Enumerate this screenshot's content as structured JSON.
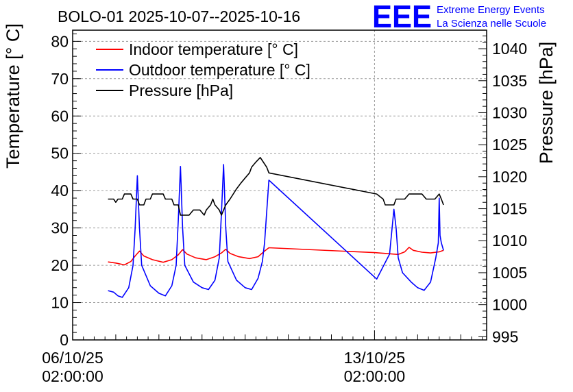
{
  "chart_data": {
    "type": "line",
    "title": "BOLO-01 2025-10-07--2025-10-16",
    "ylabel": "Temperature [° C]",
    "y2label": "Pressure [hPa]",
    "ylim": [
      0,
      83
    ],
    "y2lim": [
      994.5,
      1042.9
    ],
    "xlim": [
      0,
      9.6
    ],
    "x_unit": "days since 06/10/25 02:00:00",
    "yticks": [
      0,
      10,
      20,
      30,
      40,
      50,
      60,
      70,
      80
    ],
    "y2ticks": [
      995,
      1000,
      1005,
      1010,
      1015,
      1020,
      1025,
      1030,
      1035,
      1040
    ],
    "xticks": [
      {
        "x": 0,
        "line1": "06/10/25",
        "line2": "02:00:00"
      },
      {
        "x": 7,
        "line1": "13/10/25",
        "line2": "02:00:00"
      }
    ],
    "grid": true,
    "legend_position": "top-left",
    "logo": {
      "mark": "EEE",
      "line1": "Extreme Energy Events",
      "line2": "La Scienza nelle Scuole"
    },
    "series": [
      {
        "name": "Indoor temperature [° C]",
        "color": "#ff0000",
        "axis": "left",
        "x": [
          0.82,
          1.0,
          1.2,
          1.35,
          1.45,
          1.55,
          1.65,
          1.85,
          2.1,
          2.3,
          2.45,
          2.55,
          2.65,
          2.85,
          3.1,
          3.3,
          3.45,
          3.55,
          3.65,
          3.85,
          4.1,
          4.3,
          4.45,
          4.55,
          7.0,
          7.55,
          7.7,
          7.8,
          7.9,
          8.1,
          8.3,
          8.5,
          8.6
        ],
        "y": [
          20.9,
          20.6,
          20.1,
          21.0,
          22.5,
          23.8,
          22.5,
          21.5,
          20.8,
          21.5,
          22.8,
          24.2,
          23.0,
          22.0,
          21.5,
          22.3,
          23.3,
          24.3,
          23.2,
          22.3,
          21.8,
          22.3,
          23.8,
          24.7,
          23.4,
          22.9,
          23.6,
          24.8,
          24.0,
          23.5,
          23.3,
          23.6,
          24.0
        ]
      },
      {
        "name": "Outdoor temperature [° C]",
        "color": "#0000ff",
        "axis": "left",
        "x": [
          0.82,
          0.95,
          1.05,
          1.15,
          1.3,
          1.4,
          1.45,
          1.5,
          1.55,
          1.6,
          1.8,
          2.0,
          2.15,
          2.3,
          2.4,
          2.45,
          2.5,
          2.55,
          2.6,
          2.8,
          3.0,
          3.15,
          3.3,
          3.4,
          3.45,
          3.5,
          3.55,
          3.6,
          3.8,
          4.0,
          4.15,
          4.3,
          4.4,
          4.45,
          4.55,
          7.05,
          7.35,
          7.45,
          7.5,
          7.55,
          7.65,
          7.85,
          8.0,
          8.15,
          8.3,
          8.42,
          8.48,
          8.5,
          8.52,
          8.55,
          8.6
        ],
        "y": [
          13.2,
          12.8,
          11.8,
          11.4,
          14.0,
          20.0,
          30.0,
          44.0,
          30.0,
          20.0,
          14.5,
          12.5,
          11.8,
          14.5,
          20.0,
          32.0,
          46.5,
          30.0,
          20.0,
          15.5,
          14.0,
          13.5,
          16.0,
          22.0,
          34.0,
          47.0,
          30.0,
          21.0,
          16.0,
          14.0,
          13.5,
          16.5,
          21.0,
          26.0,
          42.8,
          16.3,
          23.0,
          35.0,
          30.0,
          22.0,
          18.0,
          15.5,
          14.0,
          13.3,
          15.5,
          22.0,
          26.0,
          38.0,
          28.0,
          26.0,
          24.0
        ]
      },
      {
        "name": "Pressure [hPa]",
        "color": "#000000",
        "axis": "right",
        "x": [
          0.82,
          0.95,
          1.0,
          1.05,
          1.15,
          1.2,
          1.35,
          1.4,
          1.5,
          1.55,
          1.65,
          1.7,
          1.8,
          1.85,
          2.1,
          2.15,
          2.3,
          2.35,
          2.45,
          2.5,
          2.7,
          2.8,
          2.95,
          3.05,
          3.1,
          3.2,
          3.25,
          3.3,
          3.4,
          3.45,
          3.5,
          3.55,
          3.65,
          3.8,
          3.9,
          4.0,
          4.1,
          4.15,
          4.25,
          4.35,
          4.5,
          4.55,
          7.05,
          7.2,
          7.25,
          7.45,
          7.5,
          7.7,
          7.8,
          8.1,
          8.2,
          8.4,
          8.5,
          8.55,
          8.6
        ],
        "y": [
          1016.5,
          1016.5,
          1016.0,
          1016.5,
          1016.5,
          1017.3,
          1017.3,
          1016.5,
          1016.5,
          1015.6,
          1015.6,
          1016.5,
          1016.5,
          1017.3,
          1017.3,
          1016.5,
          1016.5,
          1015.6,
          1015.6,
          1014.0,
          1014.0,
          1014.8,
          1014.8,
          1014.0,
          1014.8,
          1015.6,
          1016.5,
          1015.6,
          1014.8,
          1014.0,
          1014.8,
          1015.6,
          1016.5,
          1018.1,
          1019.0,
          1019.8,
          1020.6,
          1021.5,
          1022.3,
          1023.0,
          1021.5,
          1020.6,
          1017.3,
          1016.5,
          1015.6,
          1015.6,
          1016.5,
          1016.5,
          1017.3,
          1017.3,
          1016.5,
          1016.5,
          1017.3,
          1016.5,
          1015.6
        ]
      }
    ]
  }
}
